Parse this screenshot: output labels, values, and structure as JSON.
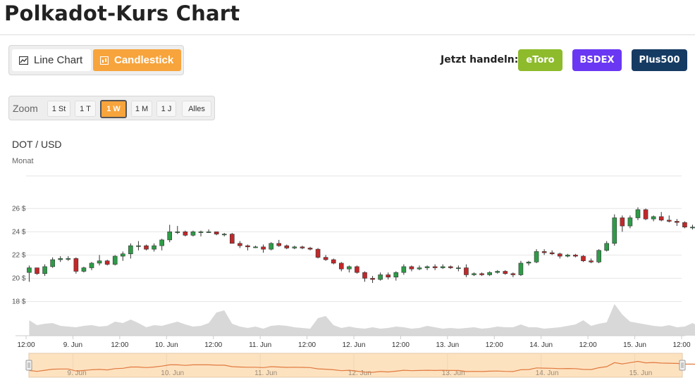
{
  "page": {
    "title": "Polkadot-Kurs Chart"
  },
  "chart_type_toggle": {
    "line_label": "Line Chart",
    "candlestick_label": "Candlestick",
    "active": "Candlestick"
  },
  "trade": {
    "label": "Jetzt handeln:",
    "brokers": [
      {
        "label": "eToro",
        "color": "#8dbb2b"
      },
      {
        "label": "BSDEX",
        "color": "#6a38f3"
      },
      {
        "label": "Plus500",
        "color": "#163b63"
      }
    ]
  },
  "zoom": {
    "label": "Zoom",
    "options": [
      "1 St",
      "1 T",
      "1 W",
      "1 M",
      "1 J",
      "Alles"
    ],
    "active": "1 W"
  },
  "chart_data": {
    "type": "candlestick",
    "title": "DOT / USD",
    "subtitle": "Monat",
    "y_ticks": [
      "26 $",
      "24 $",
      "22 $",
      "20 $",
      "18 $"
    ],
    "y_tick_values": [
      26,
      24,
      22,
      20,
      18
    ],
    "ylim": [
      17,
      28.8
    ],
    "x_ticks": [
      "12:00",
      "9. Jun",
      "12:00",
      "10. Jun",
      "12:00",
      "11. Jun",
      "12:00",
      "12. Jun",
      "12:00",
      "13. Jun",
      "12:00",
      "14. Jun",
      "12:00",
      "15. Jun",
      "12:00"
    ],
    "x_tick_hours": [
      0,
      12,
      24,
      36,
      48,
      60,
      72,
      84,
      96,
      108,
      120,
      132,
      144,
      156,
      168
    ],
    "candle_interval_hours": 2,
    "start_hour": 0.8,
    "ohlc": [
      [
        20.5,
        21.1,
        19.7,
        20.9
      ],
      [
        20.9,
        20.9,
        20.3,
        20.4
      ],
      [
        20.4,
        21.2,
        20.2,
        21.0
      ],
      [
        21.0,
        21.8,
        20.9,
        21.6
      ],
      [
        21.6,
        21.9,
        21.4,
        21.7
      ],
      [
        21.7,
        21.9,
        21.5,
        21.7
      ],
      [
        21.7,
        21.8,
        20.4,
        20.6
      ],
      [
        20.6,
        21.0,
        20.5,
        20.9
      ],
      [
        20.9,
        21.4,
        20.7,
        21.3
      ],
      [
        21.3,
        22.0,
        21.1,
        21.5
      ],
      [
        21.5,
        21.6,
        21.1,
        21.2
      ],
      [
        21.2,
        22.0,
        21.1,
        21.9
      ],
      [
        21.9,
        22.3,
        21.5,
        22.1
      ],
      [
        22.1,
        23.0,
        21.7,
        22.8
      ],
      [
        22.8,
        23.2,
        22.4,
        22.8
      ],
      [
        22.8,
        22.9,
        22.4,
        22.5
      ],
      [
        22.5,
        23.0,
        22.3,
        22.8
      ],
      [
        22.8,
        23.4,
        22.4,
        23.3
      ],
      [
        23.3,
        24.6,
        23.1,
        24.0
      ],
      [
        24.0,
        24.5,
        23.8,
        24.0
      ],
      [
        24.0,
        24.1,
        23.6,
        23.7
      ],
      [
        23.7,
        24.1,
        23.6,
        24.0
      ],
      [
        24.0,
        24.1,
        23.6,
        24.0
      ],
      [
        24.0,
        24.2,
        23.9,
        24.0
      ],
      [
        24.0,
        24.0,
        23.7,
        23.8
      ],
      [
        23.8,
        23.9,
        23.6,
        23.8
      ],
      [
        23.8,
        23.9,
        23.0,
        23.0
      ],
      [
        23.0,
        23.2,
        22.6,
        22.8
      ],
      [
        22.8,
        22.9,
        22.4,
        22.7
      ],
      [
        22.7,
        22.8,
        22.6,
        22.7
      ],
      [
        22.7,
        22.9,
        22.2,
        22.5
      ],
      [
        22.5,
        23.1,
        22.4,
        23.0
      ],
      [
        23.0,
        23.3,
        22.7,
        22.8
      ],
      [
        22.8,
        22.9,
        22.5,
        22.6
      ],
      [
        22.6,
        22.8,
        22.5,
        22.7
      ],
      [
        22.7,
        22.8,
        22.5,
        22.6
      ],
      [
        22.6,
        22.7,
        22.4,
        22.5
      ],
      [
        22.5,
        22.6,
        21.7,
        21.8
      ],
      [
        21.8,
        22.0,
        21.5,
        21.6
      ],
      [
        21.6,
        21.7,
        21.2,
        21.3
      ],
      [
        21.3,
        21.4,
        20.6,
        20.8
      ],
      [
        20.8,
        21.1,
        20.5,
        21.0
      ],
      [
        21.0,
        21.1,
        20.4,
        20.5
      ],
      [
        20.5,
        20.6,
        19.7,
        20.0
      ],
      [
        20.0,
        20.2,
        19.6,
        19.9
      ],
      [
        19.9,
        20.5,
        19.8,
        20.3
      ],
      [
        20.3,
        20.5,
        19.9,
        20.1
      ],
      [
        20.1,
        20.6,
        19.8,
        20.5
      ],
      [
        20.5,
        21.2,
        20.3,
        21.0
      ],
      [
        21.0,
        21.1,
        20.6,
        20.8
      ],
      [
        20.8,
        21.1,
        20.7,
        20.9
      ],
      [
        20.9,
        21.1,
        20.7,
        21.0
      ],
      [
        21.0,
        21.2,
        20.7,
        20.9
      ],
      [
        20.9,
        21.2,
        20.8,
        21.0
      ],
      [
        21.0,
        21.1,
        20.8,
        20.9
      ],
      [
        20.9,
        21.1,
        20.6,
        20.9
      ],
      [
        20.9,
        21.2,
        20.1,
        20.3
      ],
      [
        20.3,
        20.5,
        20.2,
        20.4
      ],
      [
        20.4,
        20.5,
        20.2,
        20.3
      ],
      [
        20.3,
        20.6,
        20.2,
        20.5
      ],
      [
        20.5,
        20.7,
        20.4,
        20.6
      ],
      [
        20.6,
        20.7,
        20.3,
        20.4
      ],
      [
        20.4,
        20.5,
        20.1,
        20.3
      ],
      [
        20.3,
        21.5,
        20.2,
        21.3
      ],
      [
        21.3,
        21.5,
        21.1,
        21.4
      ],
      [
        21.4,
        22.5,
        21.3,
        22.3
      ],
      [
        22.3,
        22.5,
        22.0,
        22.2
      ],
      [
        22.2,
        22.4,
        22.0,
        22.1
      ],
      [
        22.1,
        22.2,
        21.7,
        21.9
      ],
      [
        21.9,
        22.1,
        21.8,
        22.0
      ],
      [
        22.0,
        22.1,
        21.8,
        21.9
      ],
      [
        21.9,
        22.0,
        21.4,
        21.5
      ],
      [
        21.5,
        21.7,
        21.3,
        21.4
      ],
      [
        21.4,
        22.5,
        21.3,
        22.4
      ],
      [
        22.4,
        23.2,
        22.3,
        23.0
      ],
      [
        23.0,
        25.5,
        22.8,
        25.2
      ],
      [
        25.2,
        25.4,
        24.0,
        24.5
      ],
      [
        24.5,
        25.4,
        24.3,
        25.2
      ],
      [
        25.2,
        26.1,
        25.0,
        25.9
      ],
      [
        25.9,
        26.0,
        25.0,
        25.1
      ],
      [
        25.1,
        25.4,
        24.9,
        25.3
      ],
      [
        25.3,
        25.7,
        24.9,
        25.0
      ],
      [
        25.0,
        25.4,
        24.8,
        24.9
      ],
      [
        24.9,
        25.1,
        24.5,
        24.8
      ],
      [
        24.8,
        24.9,
        24.3,
        24.4
      ],
      [
        24.4,
        24.6,
        24.2,
        24.4
      ],
      [
        24.4,
        24.5,
        24.2,
        24.3
      ]
    ],
    "volume": [
      2.2,
      1.5,
      1.7,
      1.8,
      1.4,
      1.3,
      1.2,
      1.4,
      1.5,
      1.3,
      1.4,
      2.0,
      1.8,
      2.3,
      1.8,
      1.2,
      1.5,
      1.4,
      1.7,
      2.0,
      1.6,
      1.3,
      1.4,
      1.8,
      3.3,
      3.6,
      1.7,
      1.3,
      1.1,
      1.3,
      1.0,
      1.4,
      1.5,
      1.4,
      1.2,
      1.1,
      1.0,
      2.5,
      2.8,
      1.5,
      1.1,
      1.3,
      1.1,
      1.0,
      1.2,
      1.0,
      1.1,
      1.3,
      1.2,
      1.0,
      1.1,
      1.4,
      1.2,
      1.0,
      1.1,
      1.0,
      1.1,
      1.2,
      1.0,
      1.1,
      1.3,
      1.2,
      1.2,
      1.6,
      1.2,
      1.2,
      1.0,
      1.1,
      1.2,
      1.4,
      1.6,
      2.2,
      1.4,
      1.7,
      1.9,
      4.5,
      3.0,
      2.0,
      1.8,
      1.6,
      1.4,
      1.3,
      1.5,
      1.2,
      1.3,
      1.8,
      1.2
    ],
    "navigator_labels": [
      "9. Jun",
      "10. Jun",
      "11. Jun",
      "12. Jun",
      "13. Jun",
      "14. Jun",
      "15. Jun"
    ],
    "navigator_label_hours": [
      12,
      36,
      60,
      84,
      108,
      132,
      156
    ],
    "colors": {
      "up": "#2e9b47",
      "down": "#c3282a",
      "volume": "#d8d8d8",
      "navigator_fill": "#fde2c0",
      "navigator_line": "#e07a3f"
    }
  }
}
